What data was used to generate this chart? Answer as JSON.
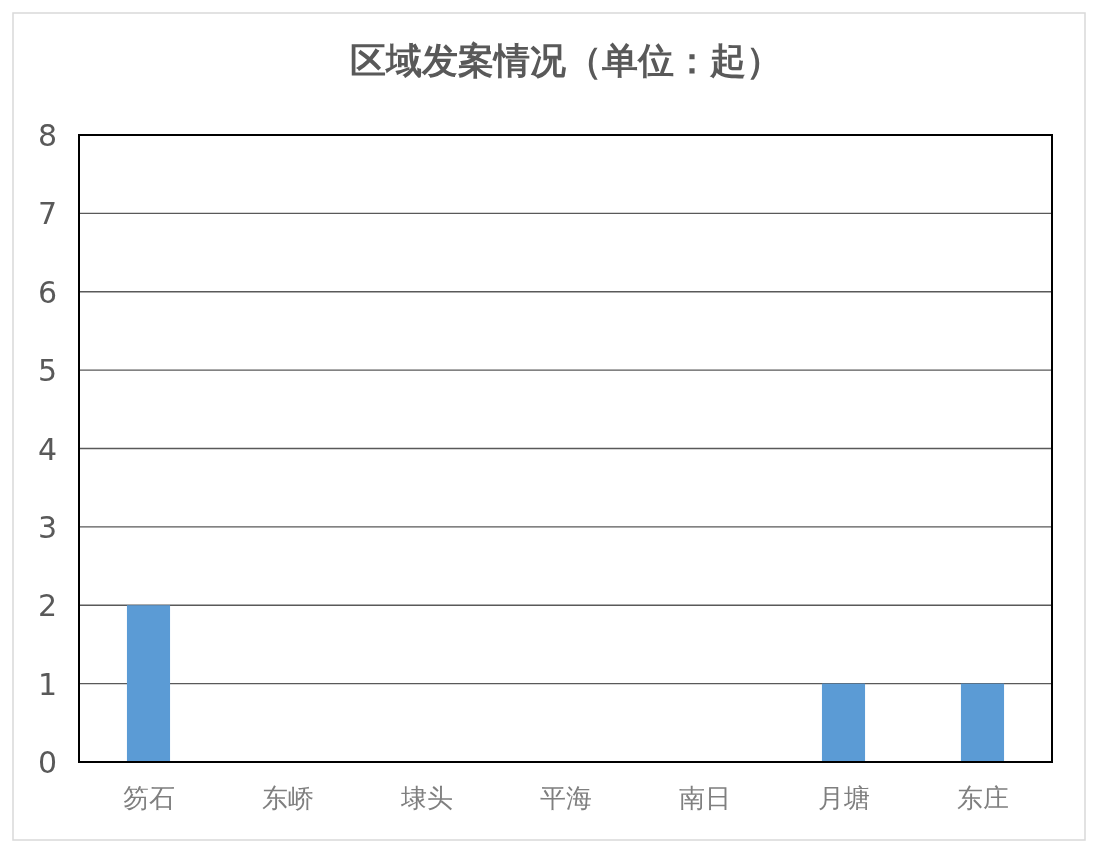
{
  "chart_data": {
    "type": "bar",
    "title": "区域发案情况（单位：起）",
    "categories": [
      "笏石",
      "东峤",
      "埭头",
      "平海",
      "南日",
      "月塘",
      "东庄"
    ],
    "values": [
      2,
      0,
      0,
      0,
      0,
      1,
      1
    ],
    "color": "#5b9bd5",
    "ylim": [
      0,
      8
    ],
    "yticks": [
      0,
      1,
      2,
      3,
      4,
      5,
      6,
      7,
      8
    ],
    "grid": "y"
  }
}
